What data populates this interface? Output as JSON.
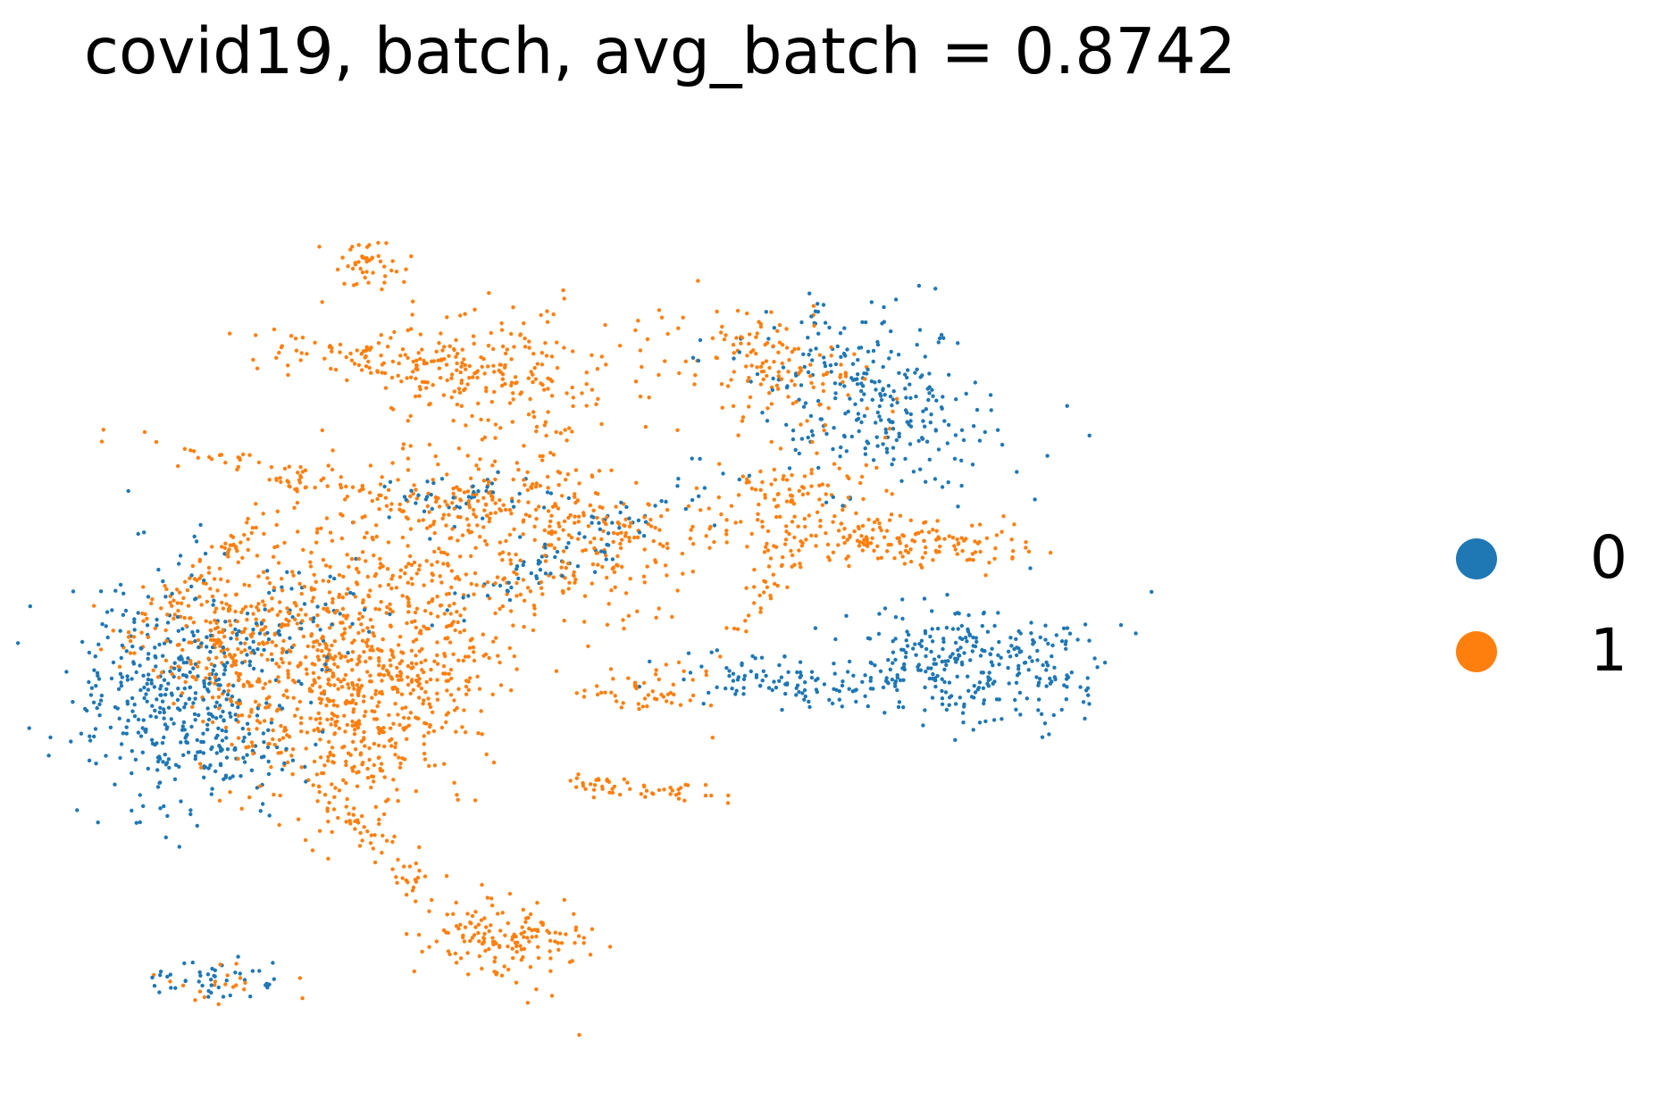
{
  "chart_data": {
    "type": "scatter",
    "title": "covid19, batch, avg_batch = 0.8742",
    "xlabel": "",
    "ylabel": "",
    "axes_visible": false,
    "grid": false,
    "legend_placement": "right",
    "xlim": [
      0,
      100
    ],
    "ylim": [
      0,
      100
    ],
    "series": [
      {
        "name": "0",
        "color": "#1f77b4",
        "clusters": [
          {
            "cx": 8,
            "cy": 40,
            "sx": 4.2,
            "sy": 6.2,
            "n": 420
          },
          {
            "cx": 64,
            "cy": 72,
            "sx": 5.5,
            "sy": 4.2,
            "angle": -35,
            "n": 280
          },
          {
            "cx": 72,
            "cy": 43,
            "sx": 6.0,
            "sy": 3.2,
            "n": 330
          },
          {
            "cx": 56,
            "cy": 41,
            "sx": 4.5,
            "sy": 1.2,
            "angle": -8,
            "n": 80
          },
          {
            "cx": 40,
            "cy": 55,
            "sx": 8.0,
            "sy": 1.4,
            "angle": 32,
            "n": 90
          },
          {
            "cx": 31,
            "cy": 61,
            "sx": 3.0,
            "sy": 1.5,
            "n": 45
          },
          {
            "cx": 11,
            "cy": 8.5,
            "sx": 3.0,
            "sy": 1.2,
            "n": 45
          },
          {
            "cx": 18,
            "cy": 47,
            "sx": 3.0,
            "sy": 3.0,
            "n": 55
          },
          {
            "cx": 12,
            "cy": 33,
            "sx": 2.5,
            "sy": 2.0,
            "n": 40
          }
        ]
      },
      {
        "name": "1",
        "color": "#ff7f0e",
        "clusters": [
          {
            "cx": 22,
            "cy": 39,
            "sx": 4.8,
            "sy": 6.2,
            "n": 560
          },
          {
            "cx": 12,
            "cy": 45,
            "sx": 3.8,
            "sy": 4.5,
            "n": 240
          },
          {
            "cx": 33,
            "cy": 60,
            "sx": 5.5,
            "sy": 2.4,
            "n": 210
          },
          {
            "cx": 24,
            "cy": 51,
            "sx": 5.0,
            "sy": 4.0,
            "n": 170
          },
          {
            "cx": 41,
            "cy": 53,
            "sx": 6.5,
            "sy": 2.5,
            "angle": 18,
            "n": 150
          },
          {
            "cx": 25,
            "cy": 22,
            "sx": 9.5,
            "sy": 0.8,
            "angle": -52,
            "n": 90
          },
          {
            "cx": 35,
            "cy": 13,
            "sx": 3.5,
            "sy": 2.0,
            "n": 130
          },
          {
            "cx": 34,
            "cy": 74,
            "sx": 5.5,
            "sy": 3.8,
            "n": 220
          },
          {
            "cx": 24,
            "cy": 76,
            "sx": 5.5,
            "sy": 1.0,
            "angle": -10,
            "n": 100
          },
          {
            "cx": 18,
            "cy": 63,
            "sx": 7.5,
            "sy": 0.7,
            "angle": -18,
            "n": 70
          },
          {
            "cx": 10,
            "cy": 53,
            "sx": 8.0,
            "sy": 0.6,
            "angle": 50,
            "n": 60
          },
          {
            "cx": 23,
            "cy": 86,
            "sx": 1.7,
            "sy": 1.5,
            "n": 45
          },
          {
            "cx": 57,
            "cy": 75,
            "sx": 4.0,
            "sy": 3.0,
            "angle": -35,
            "n": 140
          },
          {
            "cx": 58,
            "cy": 61,
            "sx": 3.0,
            "sy": 2.8,
            "n": 90
          },
          {
            "cx": 64,
            "cy": 57,
            "sx": 4.0,
            "sy": 1.6,
            "n": 80
          },
          {
            "cx": 56,
            "cy": 52,
            "sx": 4.5,
            "sy": 0.8,
            "angle": 65,
            "n": 50
          },
          {
            "cx": 70,
            "cy": 56,
            "sx": 4.0,
            "sy": 1.2,
            "n": 70
          },
          {
            "cx": 46,
            "cy": 40,
            "sx": 3.5,
            "sy": 1.6,
            "n": 50
          },
          {
            "cx": 42,
            "cy": 58,
            "sx": 3.0,
            "sy": 1.5,
            "n": 40
          },
          {
            "cx": 42,
            "cy": 30,
            "sx": 1.4,
            "sy": 0.7,
            "n": 22
          },
          {
            "cx": 47,
            "cy": 29,
            "sx": 2.8,
            "sy": 0.6,
            "n": 30
          },
          {
            "cx": 31,
            "cy": 44,
            "sx": 3.0,
            "sy": 3.5,
            "n": 80
          },
          {
            "cx": 12,
            "cy": 8.5,
            "sx": 2.5,
            "sy": 1.0,
            "n": 20
          }
        ]
      }
    ]
  },
  "legend": {
    "entries": [
      {
        "label": "0",
        "color": "#1f77b4"
      },
      {
        "label": "1",
        "color": "#ff7f0e"
      }
    ]
  }
}
